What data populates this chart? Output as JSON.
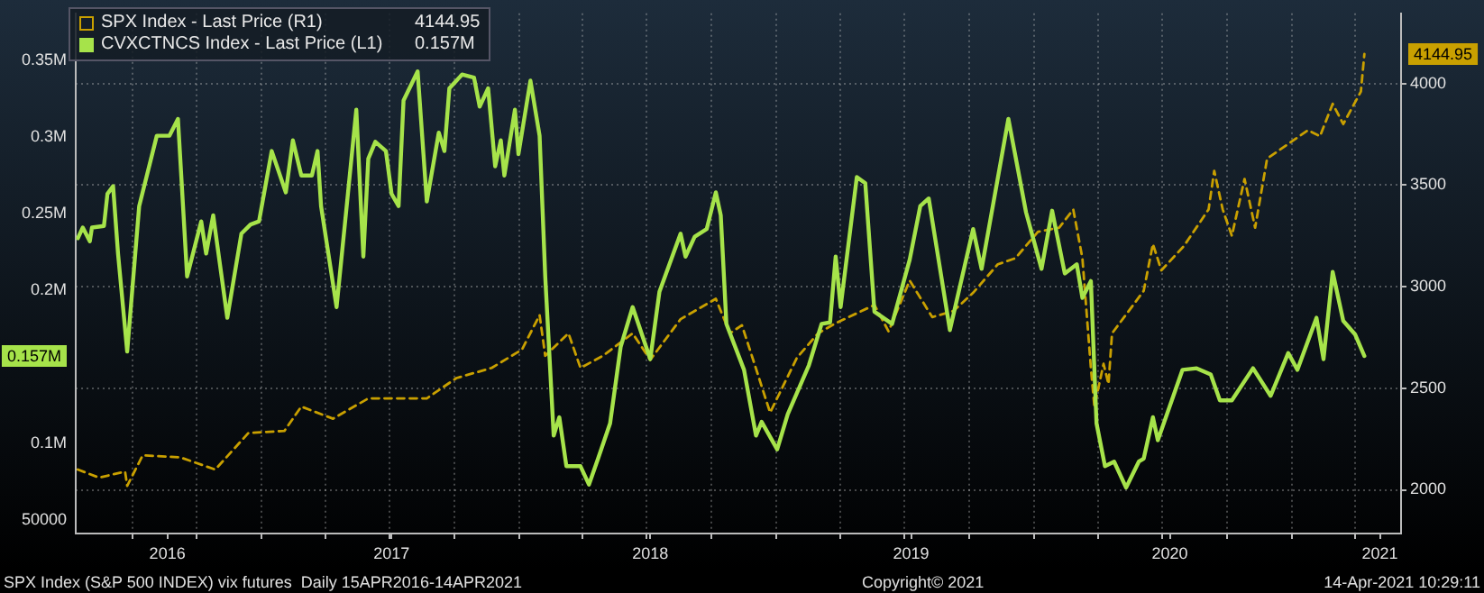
{
  "chart_data": {
    "type": "line",
    "legend": "top left",
    "grid": true,
    "marker": "none",
    "xlim": [
      "2016-04-12",
      "2021-06-05"
    ],
    "xticks": [
      {
        "value": "2016-07-01",
        "label": null
      },
      {
        "value": "2016-08-20",
        "label": "2016"
      },
      {
        "value": "2016-10-01",
        "label": null
      },
      {
        "value": "2017-01-01",
        "label": null
      },
      {
        "value": "2017-04-01",
        "label": null
      },
      {
        "value": "2017-07-01",
        "label": null
      },
      {
        "value": "2017-07-04",
        "label": "2017"
      },
      {
        "value": "2017-10-01",
        "label": null
      },
      {
        "value": "2018-01-01",
        "label": null
      },
      {
        "value": "2018-04-01",
        "label": null
      },
      {
        "value": "2018-07-01",
        "label": null
      },
      {
        "value": "2018-07-06",
        "label": "2018"
      },
      {
        "value": "2018-10-01",
        "label": null
      },
      {
        "value": "2019-01-01",
        "label": null
      },
      {
        "value": "2019-04-01",
        "label": null
      },
      {
        "value": "2019-07-01",
        "label": null
      },
      {
        "value": "2019-07-11",
        "label": "2019"
      },
      {
        "value": "2019-10-01",
        "label": null
      },
      {
        "value": "2020-01-01",
        "label": null
      },
      {
        "value": "2020-04-01",
        "label": null
      },
      {
        "value": "2020-07-01",
        "label": null
      },
      {
        "value": "2020-07-12",
        "label": "2020"
      },
      {
        "value": "2020-10-01",
        "label": null
      },
      {
        "value": "2021-01-01",
        "label": null
      },
      {
        "value": "2021-04-01",
        "label": null
      },
      {
        "value": "2021-05-06",
        "label": "2021"
      }
    ],
    "ylim": [
      41000,
      381000
    ],
    "yticks": [
      50000,
      {
        "value": 100000,
        "label": "0.1M"
      },
      {
        "value": 200000,
        "label": "0.2M"
      },
      {
        "value": 250000,
        "label": "0.25M"
      },
      {
        "value": 300000,
        "label": "0.3M"
      },
      {
        "value": 350000,
        "label": "0.35M"
      }
    ],
    "y2lim": [
      1785,
      4345
    ],
    "y2ticks": [
      2000,
      2500,
      3000,
      3500,
      4000
    ],
    "annotations": [
      "4144.95",
      "0.157M",
      "SPX Index (S&P 500 INDEX) vix futures  Daily 15APR2016-14APR2021",
      "Copyright© 2021",
      "14-Apr-2021 10:29:11"
    ],
    "series": [
      {
        "name": "SPX Index - Last Price (R1)",
        "color": "#c9a000",
        "axis": "y2",
        "line_style": "dashed",
        "x": [
          "2016-04-15",
          "2016-05-15",
          "2016-06-21",
          "2016-06-24",
          "2016-07-16",
          "2016-09-07",
          "2016-10-27",
          "2016-12-13",
          "2017-02-02",
          "2017-02-26",
          "2017-04-12",
          "2017-06-01",
          "2017-08-23",
          "2017-10-04",
          "2017-11-23",
          "2018-01-05",
          "2018-01-30",
          "2018-02-07",
          "2018-03-12",
          "2018-03-29",
          "2018-04-30",
          "2018-06-11",
          "2018-07-06",
          "2018-08-18",
          "2018-10-07",
          "2018-10-27",
          "2018-11-13",
          "2018-11-28",
          "2018-12-23",
          "2019-01-30",
          "2019-03-01",
          "2019-03-26",
          "2019-05-20",
          "2019-06-09",
          "2019-07-09",
          "2019-08-10",
          "2019-09-09",
          "2019-10-07",
          "2019-11-11",
          "2019-12-06",
          "2020-01-07",
          "2020-02-06",
          "2020-02-26",
          "2020-03-10",
          "2020-03-22",
          "2020-03-27",
          "2020-04-09",
          "2020-04-16",
          "2020-04-21",
          "2020-05-19",
          "2020-06-05",
          "2020-06-18",
          "2020-06-30",
          "2020-08-01",
          "2020-09-05",
          "2020-09-13",
          "2020-09-25",
          "2020-10-08",
          "2020-10-26",
          "2020-11-10",
          "2020-11-27",
          "2021-01-24",
          "2021-02-10",
          "2021-02-28",
          "2021-03-15",
          "2021-04-09",
          "2021-04-14"
        ],
        "values": [
          2100,
          2060,
          2090,
          2020,
          2170,
          2160,
          2100,
          2280,
          2290,
          2410,
          2350,
          2450,
          2450,
          2550,
          2600,
          2690,
          2860,
          2660,
          2770,
          2600,
          2660,
          2770,
          2640,
          2840,
          2940,
          2770,
          2810,
          2650,
          2380,
          2650,
          2770,
          2820,
          2910,
          2780,
          3030,
          2850,
          2880,
          2970,
          3110,
          3140,
          3270,
          3290,
          3380,
          3140,
          2600,
          2410,
          2620,
          2520,
          2770,
          2900,
          2980,
          3210,
          3080,
          3200,
          3380,
          3570,
          3380,
          3250,
          3530,
          3290,
          3630,
          3770,
          3740,
          3900,
          3800,
          3960,
          4144.95
        ]
      },
      {
        "name": "CVXCTNCS Index - Last Price (L1)",
        "color": "#a6e34a",
        "axis": "y",
        "line_style": "solid",
        "x": [
          "2016-04-15",
          "2016-04-22",
          "2016-05-02",
          "2016-05-05",
          "2016-05-22",
          "2016-05-27",
          "2016-06-04",
          "2016-06-11",
          "2016-06-24",
          "2016-07-11",
          "2016-08-05",
          "2016-08-23",
          "2016-09-04",
          "2016-09-17",
          "2016-10-07",
          "2016-10-14",
          "2016-10-24",
          "2016-11-13",
          "2016-12-03",
          "2016-12-16",
          "2016-12-28",
          "2017-01-15",
          "2017-02-04",
          "2017-02-14",
          "2017-02-26",
          "2017-03-13",
          "2017-03-21",
          "2017-03-26",
          "2017-04-17",
          "2017-05-02",
          "2017-05-15",
          "2017-05-25",
          "2017-06-01",
          "2017-06-11",
          "2017-06-26",
          "2017-07-04",
          "2017-07-14",
          "2017-07-21",
          "2017-08-10",
          "2017-08-23",
          "2017-09-09",
          "2017-09-17",
          "2017-09-24",
          "2017-10-12",
          "2017-10-29",
          "2017-11-06",
          "2017-11-18",
          "2017-11-28",
          "2017-12-06",
          "2017-12-11",
          "2017-12-26",
          "2017-12-31",
          "2018-01-17",
          "2018-01-30",
          "2018-02-07",
          "2018-02-19",
          "2018-02-27",
          "2018-03-09",
          "2018-03-29",
          "2018-04-10",
          "2018-04-23",
          "2018-05-10",
          "2018-05-25",
          "2018-06-11",
          "2018-07-06",
          "2018-07-19",
          "2018-08-18",
          "2018-08-25",
          "2018-09-07",
          "2018-09-24",
          "2018-10-07",
          "2018-10-14",
          "2018-10-22",
          "2018-11-16",
          "2018-12-03",
          "2018-12-11",
          "2019-01-02",
          "2019-01-17",
          "2019-02-16",
          "2019-03-06",
          "2019-03-18",
          "2019-03-26",
          "2019-04-02",
          "2019-04-25",
          "2019-05-07",
          "2019-05-20",
          "2019-06-14",
          "2019-07-09",
          "2019-07-24",
          "2019-08-05",
          "2019-09-04",
          "2019-10-07",
          "2019-10-19",
          "2019-11-26",
          "2019-12-21",
          "2020-01-12",
          "2020-01-27",
          "2020-02-14",
          "2020-03-02",
          "2020-03-10",
          "2020-03-22",
          "2020-03-30",
          "2020-04-11",
          "2020-04-24",
          "2020-05-11",
          "2020-05-29",
          "2020-06-05",
          "2020-06-18",
          "2020-06-25",
          "2020-07-30",
          "2020-08-19",
          "2020-09-08",
          "2020-09-21",
          "2020-10-08",
          "2020-11-07",
          "2020-12-02",
          "2020-12-27",
          "2021-01-09",
          "2021-02-05",
          "2021-02-15",
          "2021-02-28",
          "2021-03-15",
          "2021-04-01",
          "2021-04-14"
        ],
        "values": [
          234000,
          241000,
          232000,
          241000,
          242000,
          263000,
          268000,
          224000,
          160000,
          255000,
          301000,
          301000,
          312000,
          209000,
          245000,
          224000,
          249000,
          182000,
          237000,
          243000,
          245000,
          291000,
          264000,
          298000,
          275000,
          275000,
          291000,
          255000,
          189000,
          258000,
          318000,
          222000,
          286000,
          297000,
          291000,
          263000,
          255000,
          324000,
          343000,
          258000,
          303000,
          291000,
          332000,
          341000,
          339000,
          320000,
          332000,
          281000,
          298000,
          275000,
          318000,
          289000,
          337000,
          301000,
          209000,
          105000,
          117000,
          85000,
          85000,
          73000,
          90000,
          113000,
          163000,
          189000,
          155000,
          199000,
          237000,
          222000,
          235000,
          240000,
          264000,
          249000,
          178000,
          148000,
          105000,
          114000,
          96000,
          119000,
          151000,
          178000,
          179000,
          222000,
          189000,
          274000,
          270000,
          186000,
          178000,
          220000,
          255000,
          260000,
          174000,
          240000,
          214000,
          312000,
          251000,
          214000,
          252000,
          211000,
          217000,
          195000,
          206000,
          113000,
          85000,
          88000,
          71000,
          88000,
          90000,
          117000,
          102000,
          148000,
          149000,
          145000,
          128000,
          128000,
          149000,
          131000,
          159000,
          148000,
          182000,
          155000,
          212000,
          180000,
          171000,
          157000
        ]
      }
    ]
  }
}
